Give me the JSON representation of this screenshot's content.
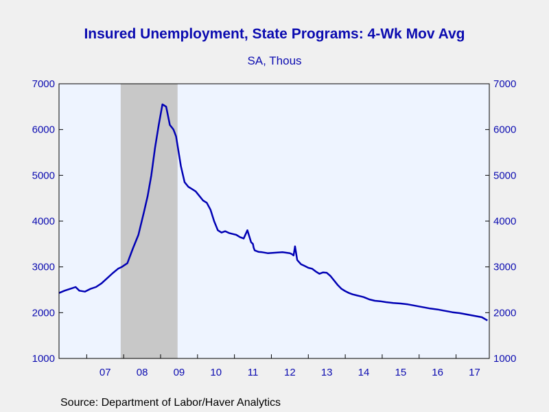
{
  "chart_data": {
    "type": "line",
    "title": "Insured Unemployment, State Programs: 4-Wk Mov Avg",
    "subtitle": "SA, Thous",
    "source": "Source:  Department of Labor/Haver Analytics",
    "ylim": [
      1000,
      7000
    ],
    "yticks": [
      1000,
      2000,
      3000,
      4000,
      5000,
      6000,
      7000
    ],
    "ytick_labels": [
      "1000",
      "2000",
      "3000",
      "4000",
      "5000",
      "6000",
      "7000"
    ],
    "xlim": [
      2006.25,
      2017.9
    ],
    "xtick_labels": [
      "07",
      "08",
      "09",
      "10",
      "11",
      "12",
      "13",
      "14",
      "15",
      "16",
      "17"
    ],
    "xtick_positions": [
      2007.5,
      2008.5,
      2009.5,
      2010.5,
      2011.5,
      2012.5,
      2013.5,
      2014.5,
      2015.5,
      2016.5,
      2017.5
    ],
    "recession_shading": [
      2007.92,
      2009.46
    ],
    "colors": {
      "line": "#0000b4",
      "plot_background": "#eef4ff",
      "recession": "#c8c8c8",
      "text": "#0b0bb0",
      "page_background": "#f0f0f0"
    },
    "grid": false,
    "series": [
      {
        "x": [
          2006.25,
          2006.4,
          2006.55,
          2006.7,
          2006.8,
          2006.95,
          2007.1,
          2007.25,
          2007.4,
          2007.55,
          2007.7,
          2007.85,
          2007.95,
          2008.1,
          2008.25,
          2008.4,
          2008.55,
          2008.65,
          2008.75,
          2008.85,
          2008.95,
          2009.05,
          2009.15,
          2009.25,
          2009.3,
          2009.35,
          2009.42,
          2009.47,
          2009.55,
          2009.65,
          2009.75,
          2009.85,
          2009.95,
          2010.05,
          2010.15,
          2010.25,
          2010.35,
          2010.45,
          2010.55,
          2010.65,
          2010.75,
          2010.85,
          2010.95,
          2011.05,
          2011.15,
          2011.25,
          2011.35,
          2011.45,
          2011.5,
          2011.52,
          2011.55,
          2011.65,
          2011.75,
          2011.9,
          2012.1,
          2012.3,
          2012.5,
          2012.55,
          2012.6,
          2012.64,
          2012.7,
          2012.8,
          2012.9,
          2013.0,
          2013.1,
          2013.2,
          2013.3,
          2013.4,
          2013.5,
          2013.6,
          2013.7,
          2013.8,
          2013.9,
          2014.0,
          2014.1,
          2014.2,
          2014.3,
          2014.4,
          2014.5,
          2014.65,
          2014.8,
          2014.95,
          2015.1,
          2015.3,
          2015.5,
          2015.7,
          2015.9,
          2016.1,
          2016.3,
          2016.5,
          2016.7,
          2016.9,
          2017.1,
          2017.3,
          2017.5,
          2017.7,
          2017.85
        ],
        "values": [
          2430,
          2480,
          2520,
          2560,
          2480,
          2460,
          2520,
          2560,
          2640,
          2750,
          2860,
          2960,
          3000,
          3080,
          3400,
          3700,
          4200,
          4550,
          5000,
          5600,
          6100,
          6550,
          6500,
          6100,
          6050,
          6000,
          5850,
          5600,
          5200,
          4850,
          4750,
          4700,
          4650,
          4550,
          4450,
          4400,
          4250,
          4000,
          3800,
          3750,
          3780,
          3740,
          3720,
          3700,
          3650,
          3620,
          3800,
          3540,
          3500,
          3420,
          3360,
          3330,
          3320,
          3300,
          3310,
          3320,
          3300,
          3280,
          3250,
          3450,
          3150,
          3060,
          3020,
          2980,
          2960,
          2900,
          2850,
          2880,
          2870,
          2800,
          2700,
          2600,
          2520,
          2470,
          2430,
          2400,
          2380,
          2360,
          2340,
          2290,
          2260,
          2250,
          2230,
          2210,
          2200,
          2180,
          2150,
          2120,
          2090,
          2070,
          2040,
          2010,
          1990,
          1960,
          1930,
          1900,
          1830
        ]
      }
    ]
  }
}
